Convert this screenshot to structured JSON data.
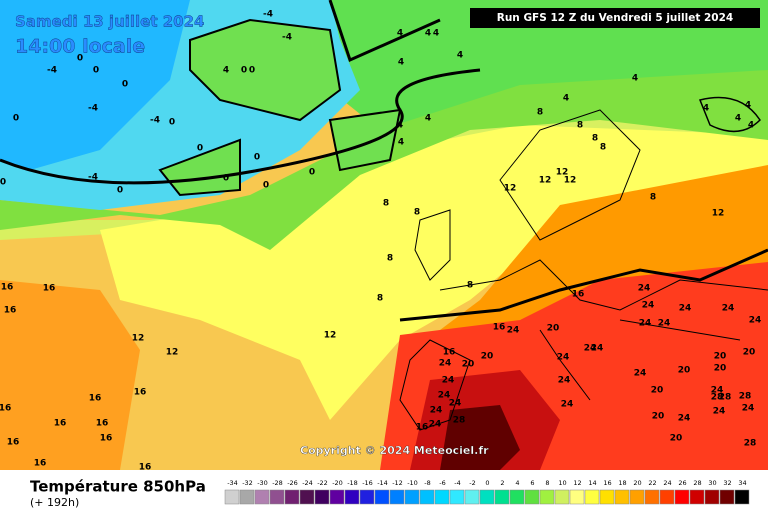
{
  "header": {
    "title": "Samedi 13 juillet 2024",
    "time": "14:00 locale",
    "run": "Run GFS 12 Z du Vendredi 5 juillet 2024"
  },
  "map": {
    "labels": [
      -4,
      -4,
      -4,
      -4,
      -4,
      -4,
      0,
      0,
      0,
      0,
      0,
      0,
      0,
      0,
      0,
      0,
      0,
      0,
      0,
      0,
      4,
      4,
      4,
      4,
      4,
      4,
      4,
      4,
      4,
      4,
      4,
      4,
      4,
      4,
      4,
      8,
      8,
      8,
      8,
      8,
      8,
      8,
      8,
      8,
      8,
      12,
      12,
      12,
      12,
      12,
      12,
      12,
      12,
      16,
      16,
      16,
      16,
      16,
      16,
      16,
      16,
      16,
      16,
      16,
      16,
      16,
      16,
      16,
      16,
      20,
      20,
      20,
      20,
      20,
      20,
      20,
      20,
      20,
      20,
      24,
      24,
      24,
      24,
      24,
      24,
      24,
      24,
      24,
      24,
      24,
      24,
      24,
      24,
      24,
      24,
      24,
      24,
      24,
      24,
      24,
      24,
      24,
      24,
      28,
      28,
      28,
      28,
      28
    ]
  },
  "copyright": "Copyright © 2024 Meteociel.fr",
  "footer": {
    "variable": "Température 850hPa",
    "lead": "(+ 192h)"
  },
  "legend": {
    "values": [
      -34,
      -32,
      -30,
      -28,
      -26,
      -24,
      -22,
      -20,
      -18,
      -16,
      -14,
      -12,
      -10,
      -8,
      -6,
      -4,
      -2,
      0,
      2,
      4,
      6,
      8,
      10,
      12,
      14,
      16,
      18,
      20,
      22,
      24,
      26,
      28,
      30,
      32,
      34
    ],
    "colors": [
      "#d0d0d0",
      "#a8a8a8",
      "#b080b0",
      "#905090",
      "#702070",
      "#501050",
      "#400060",
      "#6000a0",
      "#3000c0",
      "#2020e0",
      "#0050ff",
      "#0080ff",
      "#00a0ff",
      "#00c0ff",
      "#00d8ff",
      "#30e8ff",
      "#60f0f0",
      "#00e0c0",
      "#00e090",
      "#20e060",
      "#60e040",
      "#a0f040",
      "#d0f060",
      "#ffff80",
      "#ffff40",
      "#ffe000",
      "#ffc000",
      "#ffa000",
      "#ff7000",
      "#ff4000",
      "#ff0000",
      "#d00000",
      "#a00000",
      "#700000",
      "#000000"
    ]
  }
}
